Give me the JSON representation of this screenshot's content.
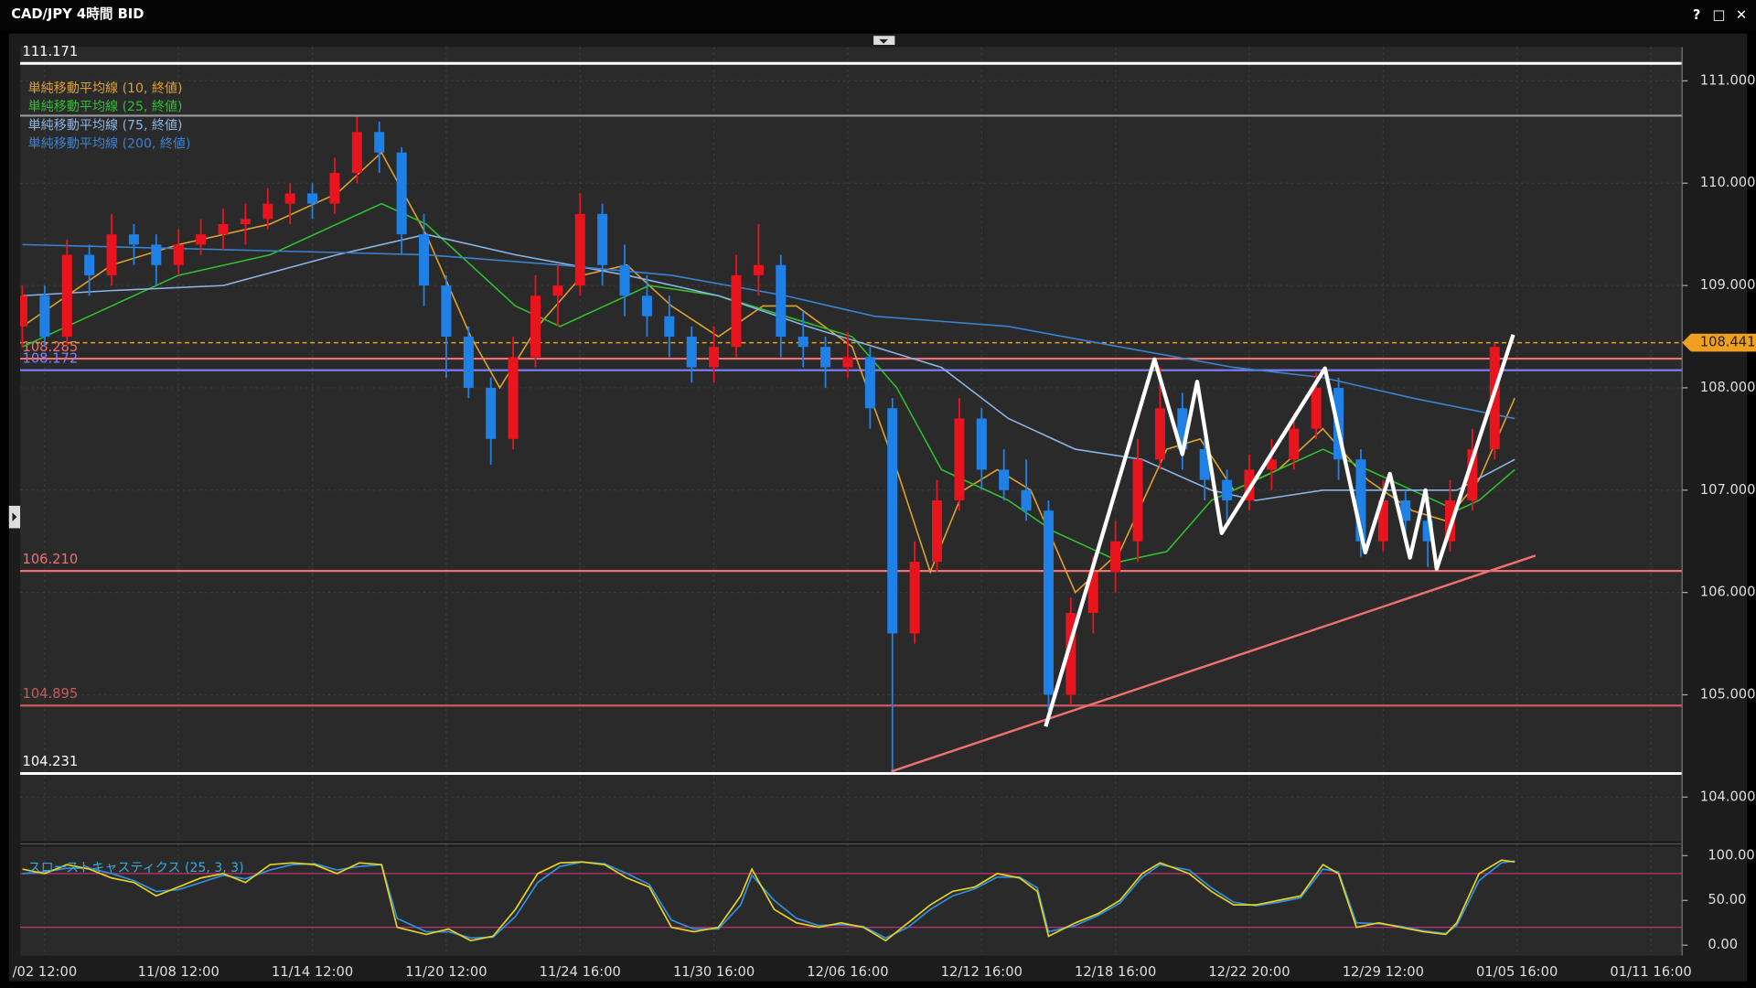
{
  "window": {
    "buttons": [
      "?",
      "□",
      "✕"
    ]
  },
  "chart_data": {
    "type": "candlestick",
    "title": "CAD/JPY 4時間 BID",
    "up_color": "#e8141e",
    "down_color": "#1f80e6",
    "xlim": [
      -1.1,
      73.4
    ],
    "xticks": [
      {
        "value": 0,
        "label": "/02 12:00"
      },
      {
        "value": 6,
        "label": "11/08 12:00"
      },
      {
        "value": 12,
        "label": "11/14 12:00"
      },
      {
        "value": 18,
        "label": "11/20 12:00"
      },
      {
        "value": 24,
        "label": "11/24 16:00"
      },
      {
        "value": 30,
        "label": "11/30 16:00"
      },
      {
        "value": 36,
        "label": "12/06 16:00"
      },
      {
        "value": 42,
        "label": "12/12 16:00"
      },
      {
        "value": 48,
        "label": "12/18 16:00"
      },
      {
        "value": 54,
        "label": "12/22 20:00"
      },
      {
        "value": 60,
        "label": "12/29 12:00"
      },
      {
        "value": 66,
        "label": "01/05 16:00"
      },
      {
        "value": 72,
        "label": "01/11 16:00"
      }
    ],
    "ylim": [
      103.57,
      111.33
    ],
    "yticks": [
      {
        "value": 104,
        "label": "104.000"
      },
      {
        "value": 105,
        "label": "105.000"
      },
      {
        "value": 106,
        "label": "106.000"
      },
      {
        "value": 107,
        "label": "107.000"
      },
      {
        "value": 108,
        "label": "108.000"
      },
      {
        "value": 109,
        "label": "109.000"
      },
      {
        "value": 110,
        "label": "110.000"
      },
      {
        "value": 111,
        "label": "111.000"
      }
    ],
    "grid": true,
    "x": [
      -1,
      0,
      1,
      2,
      3,
      4,
      5,
      6,
      7,
      8,
      9,
      10,
      11,
      12,
      13,
      14,
      15,
      16,
      17,
      18,
      19,
      20,
      21,
      22,
      23,
      24,
      25,
      26,
      27,
      28,
      29,
      30,
      31,
      32,
      33,
      34,
      35,
      36,
      37,
      38,
      39,
      40,
      41,
      42,
      43,
      44,
      45,
      46,
      47,
      48,
      49,
      50,
      51,
      52,
      53,
      54,
      55,
      56,
      57,
      58,
      59,
      60,
      61,
      62,
      63,
      64,
      65
    ],
    "open": [
      108.6,
      108.9,
      108.5,
      109.3,
      109.1,
      109.5,
      109.4,
      109.2,
      109.4,
      109.5,
      109.6,
      109.65,
      109.8,
      109.9,
      109.8,
      110.1,
      110.5,
      110.3,
      109.5,
      109.0,
      108.5,
      108.0,
      107.5,
      108.3,
      108.9,
      109.0,
      109.7,
      109.2,
      108.9,
      108.7,
      108.5,
      108.2,
      108.4,
      109.1,
      109.2,
      108.5,
      108.4,
      108.2,
      108.3,
      107.8,
      105.6,
      106.3,
      106.9,
      107.7,
      107.2,
      107.0,
      106.8,
      105.0,
      105.8,
      106.2,
      106.5,
      107.3,
      107.8,
      107.4,
      107.1,
      106.9,
      107.2,
      107.3,
      107.6,
      108.0,
      107.3,
      106.5,
      106.9,
      106.7,
      106.5,
      106.9,
      107.4
    ],
    "high": [
      109.0,
      109.0,
      109.45,
      109.4,
      109.7,
      109.6,
      109.5,
      109.55,
      109.65,
      109.75,
      109.8,
      109.95,
      110.0,
      110.0,
      110.25,
      110.65,
      110.6,
      110.35,
      109.7,
      109.1,
      108.6,
      108.1,
      108.5,
      109.1,
      109.2,
      109.9,
      109.8,
      109.4,
      109.1,
      108.9,
      108.6,
      108.6,
      109.3,
      109.6,
      109.3,
      108.75,
      108.5,
      108.55,
      108.4,
      107.9,
      106.5,
      107.1,
      107.9,
      107.8,
      107.4,
      107.3,
      106.9,
      105.95,
      106.35,
      106.7,
      107.5,
      108.2,
      107.95,
      107.5,
      107.2,
      107.35,
      107.5,
      107.75,
      108.15,
      108.1,
      107.4,
      107.1,
      107.0,
      106.8,
      107.1,
      107.6,
      108.44
    ],
    "low": [
      108.4,
      108.4,
      108.4,
      108.9,
      109.0,
      109.2,
      109.0,
      109.1,
      109.3,
      109.35,
      109.4,
      109.55,
      109.6,
      109.65,
      109.7,
      110.0,
      110.1,
      109.3,
      108.8,
      108.1,
      107.9,
      107.25,
      107.4,
      108.2,
      108.6,
      108.9,
      109.0,
      108.7,
      108.5,
      108.3,
      108.05,
      108.05,
      108.3,
      108.9,
      108.3,
      108.2,
      108.0,
      108.1,
      107.6,
      104.25,
      105.5,
      106.2,
      106.8,
      107.0,
      106.9,
      106.7,
      104.85,
      104.9,
      105.6,
      106.0,
      106.3,
      107.2,
      107.2,
      106.9,
      106.7,
      106.8,
      107.0,
      107.2,
      107.5,
      107.1,
      106.35,
      106.4,
      106.5,
      106.25,
      106.4,
      106.8,
      107.3
    ],
    "close": [
      108.9,
      108.5,
      109.3,
      109.1,
      109.5,
      109.4,
      109.2,
      109.4,
      109.5,
      109.6,
      109.65,
      109.8,
      109.9,
      109.8,
      110.1,
      110.5,
      110.3,
      109.5,
      109.0,
      108.5,
      108.0,
      107.5,
      108.3,
      108.9,
      109.0,
      109.7,
      109.2,
      108.9,
      108.7,
      108.5,
      108.2,
      108.4,
      109.1,
      109.2,
      108.5,
      108.4,
      108.2,
      108.3,
      107.8,
      105.6,
      106.3,
      106.9,
      107.7,
      107.2,
      107.0,
      106.8,
      105.0,
      105.8,
      106.2,
      106.5,
      107.3,
      107.8,
      107.4,
      107.1,
      106.9,
      107.2,
      107.3,
      107.6,
      108.0,
      107.3,
      106.5,
      106.9,
      106.7,
      106.5,
      106.9,
      107.4,
      108.4
    ],
    "moving_averages": [
      {
        "name": "単純移動平均線 (10, 終値)",
        "color": "#e0a030",
        "x": [
          -1,
          3,
          6,
          10.1,
          13.1,
          15.1,
          17.1,
          19.1,
          20.4,
          22.1,
          24.1,
          26.1,
          28.1,
          30.2,
          32.2,
          33.7,
          36.2,
          38.2,
          39.7,
          41.2,
          42.7,
          44.2,
          46.2,
          48.2,
          50.3,
          51.8,
          53.3,
          55.3,
          57.3,
          59.3,
          61.3,
          62.8,
          64.3,
          65.9
        ],
        "values": [
          108.6,
          109.2,
          109.4,
          109.6,
          109.9,
          110.3,
          109.5,
          108.5,
          108.0,
          108.6,
          109.1,
          109.2,
          108.8,
          108.5,
          108.8,
          108.8,
          108.4,
          107.2,
          106.2,
          107.0,
          107.2,
          107.0,
          106.0,
          106.4,
          107.4,
          107.5,
          107.0,
          107.2,
          107.6,
          107.1,
          106.8,
          106.7,
          107.1,
          107.9
        ]
      },
      {
        "name": "単純移動平均線 (25, 終値)",
        "color": "#2fbf2f",
        "x": [
          -1,
          3,
          6,
          10.1,
          13.1,
          15.1,
          17.1,
          19.1,
          21.1,
          23.1,
          25.1,
          27.1,
          30.2,
          33.2,
          36.2,
          38.2,
          40.2,
          43.2,
          45.2,
          48.2,
          50.3,
          52.3,
          55.3,
          57.3,
          59.3,
          61.3,
          63.3,
          64.3,
          65.9
        ],
        "values": [
          108.4,
          108.8,
          109.1,
          109.3,
          109.6,
          109.8,
          109.6,
          109.2,
          108.8,
          108.6,
          108.8,
          109.0,
          108.9,
          108.7,
          108.5,
          108.0,
          107.2,
          106.9,
          106.6,
          106.3,
          106.4,
          106.9,
          107.2,
          107.4,
          107.2,
          107.0,
          106.8,
          106.9,
          107.2
        ]
      },
      {
        "name": "単純移動平均線 (75, 終値)",
        "color": "#8ab4e6",
        "x": [
          -1,
          3,
          8,
          13.1,
          17.1,
          21.1,
          26.1,
          30.2,
          34.2,
          37.2,
          40.2,
          43.2,
          46.2,
          49.2,
          52.3,
          54.3,
          57.3,
          60.3,
          63.3,
          65.9
        ],
        "values": [
          108.9,
          108.95,
          109.0,
          109.3,
          109.5,
          109.3,
          109.1,
          108.9,
          108.6,
          108.4,
          108.2,
          107.7,
          107.4,
          107.3,
          107.0,
          106.9,
          107.0,
          107.0,
          107.0,
          107.3
        ]
      },
      {
        "name": "単純移動平均線 (200, 終値)",
        "color": "#3a82d2",
        "x": [
          -1,
          8,
          17.1,
          23.1,
          28.1,
          33.2,
          37.2,
          43.2,
          48.2,
          53.3,
          57.3,
          61.3,
          65.9
        ],
        "values": [
          109.4,
          109.35,
          109.3,
          109.2,
          109.1,
          108.9,
          108.7,
          108.6,
          108.4,
          108.2,
          108.1,
          107.9,
          107.7
        ]
      }
    ],
    "levels": [
      {
        "value": 111.171,
        "label": "111.171",
        "color": "#ffffff"
      },
      {
        "value": 110.66,
        "color": "#9a9a9a"
      },
      {
        "value": 108.285,
        "label": "108.285",
        "color": "#f07070"
      },
      {
        "value": 108.172,
        "label": "108.172",
        "color": "#8080ff"
      },
      {
        "value": 106.21,
        "label": "106.210",
        "color": "#f07070"
      },
      {
        "value": 104.895,
        "label": "104.895",
        "color": "#c85a5a"
      },
      {
        "value": 104.231,
        "label": "104.231",
        "color": "#ffffff"
      }
    ],
    "current_price": {
      "value": 108.441,
      "label": "108.441",
      "color": "#f0a020"
    },
    "annotations": [
      {
        "color": "#f07070",
        "x": [
          37.94,
          66.83
        ],
        "values": [
          104.25,
          106.36
        ]
      },
      {
        "color": "#ffffff",
        "x": [
          44.87,
          49.75,
          51.0,
          51.66,
          52.76,
          57.39,
          59.2,
          60.3,
          61.2,
          61.9,
          62.4,
          65.83
        ],
        "values": [
          104.69,
          108.28,
          107.35,
          108.06,
          106.58,
          108.19,
          106.39,
          107.16,
          106.34,
          107.0,
          106.23,
          108.52
        ]
      }
    ],
    "oscillator": {
      "type": "line",
      "name": "スローストキャスティクス (25, 3, 3)",
      "ylim": [
        -11.5,
        110
      ],
      "yticks": [
        {
          "value": 100,
          "label": "100.00"
        },
        {
          "value": 50,
          "label": "50.00"
        },
        {
          "value": 0,
          "label": "0.00"
        }
      ],
      "levels": [
        {
          "value": 80,
          "color": "#c03070"
        },
        {
          "value": 20,
          "color": "#c03070"
        }
      ],
      "x": [
        -1,
        0,
        1,
        2,
        3,
        4,
        5,
        6,
        7,
        8,
        9,
        10.1,
        11.1,
        12.1,
        13.1,
        14.1,
        15.1,
        15.8,
        17.1,
        18.1,
        19.1,
        20.1,
        21.1,
        22.1,
        23.1,
        24.1,
        25.1,
        26.1,
        27.1,
        28.1,
        29.1,
        30.2,
        31.2,
        31.7,
        32.7,
        33.7,
        34.7,
        35.7,
        36.7,
        37.7,
        38.7,
        39.7,
        40.7,
        41.7,
        42.7,
        43.7,
        44.5,
        45.0,
        46.2,
        47.2,
        48.2,
        49.2,
        50.0,
        51.3,
        52.3,
        53.3,
        54.3,
        55.3,
        56.3,
        57.3,
        58.0,
        58.8,
        59.8,
        60.8,
        61.8,
        62.8,
        63.3,
        64.3,
        65.3,
        65.9
      ],
      "series": [
        {
          "color": "#2f8fe0",
          "values": [
            80,
            82,
            86,
            86,
            80,
            72,
            60,
            62,
            70,
            78,
            74,
            84,
            90,
            91,
            84,
            88,
            90,
            30,
            15,
            15,
            8,
            9,
            32,
            70,
            88,
            93,
            91,
            80,
            68,
            28,
            18,
            18,
            45,
            78,
            50,
            30,
            22,
            23,
            21,
            8,
            20,
            40,
            55,
            63,
            76,
            76,
            64,
            15,
            22,
            33,
            47,
            76,
            90,
            84,
            64,
            48,
            44,
            48,
            53,
            85,
            82,
            25,
            24,
            21,
            16,
            13,
            22,
            72,
            92,
            94
          ]
        },
        {
          "color": "#e6d020",
          "values": [
            85,
            80,
            90,
            85,
            75,
            70,
            55,
            65,
            75,
            80,
            70,
            90,
            92,
            90,
            80,
            92,
            90,
            20,
            12,
            18,
            5,
            10,
            40,
            80,
            92,
            93,
            90,
            75,
            65,
            20,
            15,
            20,
            55,
            85,
            40,
            25,
            20,
            25,
            20,
            5,
            25,
            45,
            60,
            65,
            80,
            75,
            60,
            10,
            25,
            35,
            50,
            80,
            92,
            80,
            60,
            45,
            45,
            50,
            55,
            90,
            80,
            20,
            25,
            20,
            15,
            12,
            25,
            80,
            95,
            93
          ]
        }
      ]
    }
  }
}
